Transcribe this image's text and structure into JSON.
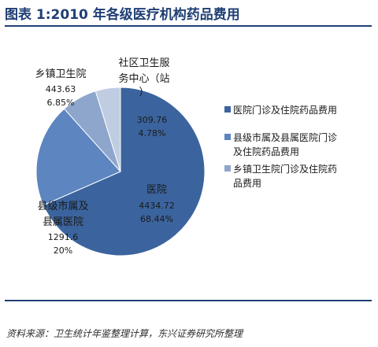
{
  "title": "图表 1:2010 年各级医疗机构药品费用",
  "source": "资料来源：卫生统计年鉴整理计算，东兴证券研究所整理",
  "colors": {
    "title": "#1f3f74",
    "slice_hospital": "#3b649e",
    "slice_county": "#5d85c0",
    "slice_township": "#8ea6cc",
    "slice_community": "#c0cce2"
  },
  "chart_data": {
    "type": "pie",
    "series": [
      {
        "slices": [
          {
            "label": "医院",
            "value": 4434.72,
            "value_text": "4434.72",
            "percent": 68.44,
            "percent_text": "68.44%"
          },
          {
            "label": "县级市属及县属医院",
            "label_lines": [
              "县级市属及",
              "县属医院"
            ],
            "value": 1291.6,
            "value_text": "1291.6",
            "percent": 20,
            "percent_text": "20%"
          },
          {
            "label": "乡镇卫生院",
            "label_lines": [
              "乡镇卫生院"
            ],
            "value": 443.63,
            "value_text": "443.63",
            "percent": 6.85,
            "percent_text": "6.85%"
          },
          {
            "label": "社区卫生服务中心（站）",
            "label_lines": [
              "社区卫生服",
              "务中心（站",
              "）"
            ],
            "value": 309.76,
            "value_text": "309.76",
            "percent": 4.78,
            "percent_text": "4.78%"
          }
        ]
      }
    ],
    "legend": {
      "position": "right",
      "entries": [
        {
          "lines": [
            "医院门诊及住院药品费用"
          ]
        },
        {
          "lines": [
            "县级市属及县属医院门诊",
            "及住院药品费用"
          ]
        },
        {
          "lines": [
            "乡镇卫生院门诊及住院药",
            "品费用"
          ]
        }
      ]
    }
  }
}
